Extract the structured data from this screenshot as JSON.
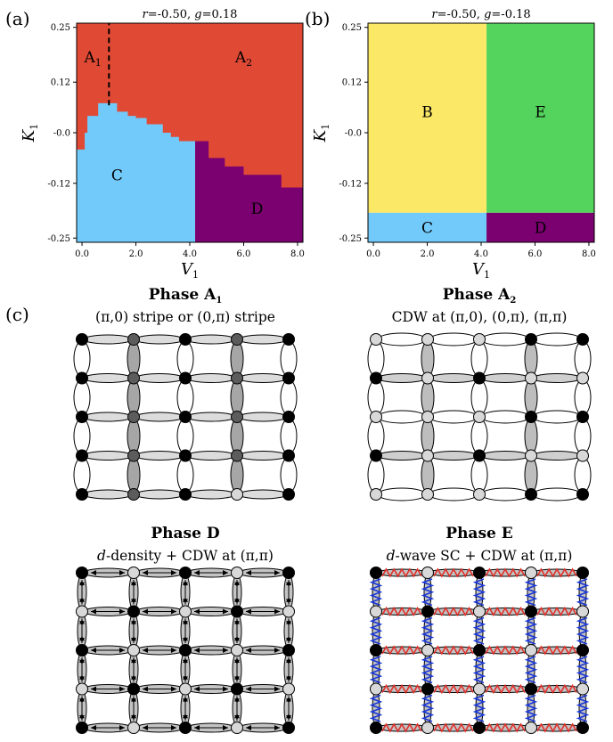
{
  "panel_tags": {
    "a": "(a)",
    "b": "(b)",
    "c": "(c)"
  },
  "colors": {
    "A": "#e04a35",
    "C": "#72cafa",
    "D": "#7b0070",
    "B": "#fbe867",
    "E": "#55d45d",
    "site_black": "#000000",
    "site_dark": "#5c5c5c",
    "site_light": "#d8d8d8",
    "bond_gray": "#bbbbbb",
    "bond_white": "#ffffff",
    "sc_red": "#e0302a",
    "sc_blue": "#1a36d4"
  },
  "chart_data": [
    {
      "type": "heatmap",
      "title": "r=-0.50, g=0.18",
      "xlabel": "V1",
      "ylabel": "K1",
      "xlim": [
        -0.2,
        8.2
      ],
      "ylim": [
        -0.26,
        0.26
      ],
      "xticks": [
        "0.0",
        "2.0",
        "4.0",
        "6.0",
        "8.0"
      ],
      "xtick_values": [
        0,
        2,
        4,
        6,
        8
      ],
      "yticks": [
        "0.25",
        "0.12",
        "-0.0",
        "-0.12",
        "-0.25"
      ],
      "ytick_values": [
        0.25,
        0.12,
        0,
        -0.12,
        -0.25
      ],
      "phase_labels": [
        {
          "text": "A",
          "sub": "1",
          "x": 0.4,
          "y": 0.18
        },
        {
          "text": "A",
          "sub": "2",
          "x": 6.0,
          "y": 0.18
        },
        {
          "text": "C",
          "sub": "",
          "x": 1.3,
          "y": -0.1
        },
        {
          "text": "D",
          "sub": "",
          "x": 6.5,
          "y": -0.18
        }
      ],
      "dashed_boundary": {
        "x": 1.0,
        "y_from": 0.065,
        "y_to": 0.26
      },
      "region_C_boundary": [
        [
          -0.2,
          -0.04
        ],
        [
          0.1,
          -0.04
        ],
        [
          0.1,
          0.0
        ],
        [
          0.2,
          0.0
        ],
        [
          0.2,
          0.04
        ],
        [
          0.6,
          0.04
        ],
        [
          0.6,
          0.07
        ],
        [
          1.3,
          0.07
        ],
        [
          1.3,
          0.05
        ],
        [
          1.7,
          0.05
        ],
        [
          1.7,
          0.04
        ],
        [
          2.0,
          0.04
        ],
        [
          2.0,
          0.035
        ],
        [
          2.4,
          0.035
        ],
        [
          2.4,
          0.02
        ],
        [
          3.0,
          0.02
        ],
        [
          3.0,
          0.0
        ],
        [
          3.3,
          0.0
        ],
        [
          3.3,
          -0.01
        ],
        [
          3.6,
          -0.01
        ],
        [
          3.6,
          -0.02
        ],
        [
          4.2,
          -0.02
        ],
        [
          4.2,
          -0.26
        ],
        [
          -0.2,
          -0.26
        ]
      ],
      "region_D_boundary": [
        [
          4.2,
          -0.02
        ],
        [
          4.7,
          -0.02
        ],
        [
          4.7,
          -0.06
        ],
        [
          5.3,
          -0.06
        ],
        [
          5.3,
          -0.08
        ],
        [
          6.0,
          -0.08
        ],
        [
          6.0,
          -0.1
        ],
        [
          7.4,
          -0.1
        ],
        [
          7.4,
          -0.13
        ],
        [
          8.2,
          -0.13
        ],
        [
          8.2,
          -0.26
        ],
        [
          4.2,
          -0.26
        ]
      ]
    },
    {
      "type": "heatmap",
      "title": "r=-0.50, g=-0.18",
      "xlabel": "V1",
      "ylabel": "K1",
      "xlim": [
        -0.2,
        8.2
      ],
      "ylim": [
        -0.26,
        0.26
      ],
      "xticks": [
        "0.0",
        "2.0",
        "4.0",
        "6.0",
        "8.0"
      ],
      "xtick_values": [
        0,
        2,
        4,
        6,
        8
      ],
      "yticks": [
        "0.25",
        "0.12",
        "-0.0",
        "-0.12",
        "-0.25"
      ],
      "ytick_values": [
        0.25,
        0.12,
        0,
        -0.12,
        -0.25
      ],
      "regions": [
        {
          "phase": "B",
          "x0": -0.2,
          "x1": 4.2,
          "y0": -0.19,
          "y1": 0.26
        },
        {
          "phase": "E",
          "x0": 4.2,
          "x1": 8.2,
          "y0": -0.19,
          "y1": 0.26
        },
        {
          "phase": "C",
          "x0": -0.2,
          "x1": 4.2,
          "y0": -0.26,
          "y1": -0.19
        },
        {
          "phase": "D",
          "x0": 4.2,
          "x1": 8.2,
          "y0": -0.26,
          "y1": -0.19
        }
      ],
      "phase_labels": [
        {
          "text": "B",
          "sub": "",
          "x": 2.0,
          "y": 0.05
        },
        {
          "text": "E",
          "sub": "",
          "x": 6.2,
          "y": 0.05
        },
        {
          "text": "C",
          "sub": "",
          "x": 2.0,
          "y": -0.225
        },
        {
          "text": "D",
          "sub": "",
          "x": 6.2,
          "y": -0.225
        }
      ]
    }
  ],
  "phases": [
    {
      "title": "Phase A",
      "title_sub": "1",
      "desc": "(π,0) stripe or (0,π) stripe",
      "desc_italic": ""
    },
    {
      "title": "Phase A",
      "title_sub": "2",
      "desc": "CDW at (π,0), (0,π), (π,π)",
      "desc_italic": ""
    },
    {
      "title": "Phase D",
      "title_sub": "",
      "desc": "-density + CDW at (π,π)",
      "desc_italic": "d"
    },
    {
      "title": "Phase E",
      "title_sub": "",
      "desc": "-wave SC + CDW at (π,π)",
      "desc_italic": "d"
    }
  ]
}
